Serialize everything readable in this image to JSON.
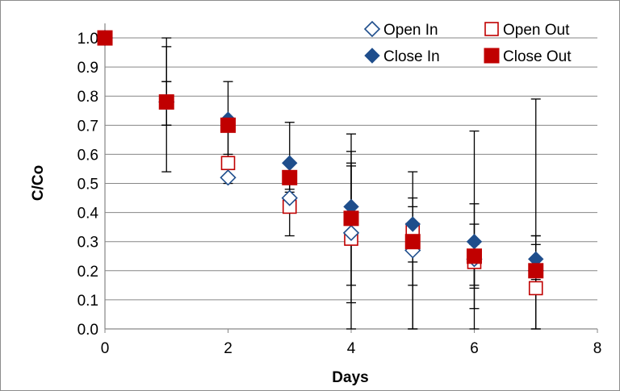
{
  "chart_data": {
    "type": "scatter",
    "title": "",
    "xlabel": "Days",
    "ylabel": "C/Co",
    "xlim": [
      0,
      8
    ],
    "ylim": [
      0,
      1.05
    ],
    "x_ticks": [
      "0",
      "2",
      "4",
      "6",
      "8"
    ],
    "y_ticks": [
      "0.0",
      "0.1",
      "0.2",
      "0.3",
      "0.4",
      "0.5",
      "0.6",
      "0.7",
      "0.8",
      "0.9",
      "1.0"
    ],
    "grid": "horizontal",
    "legend_position": "top-right",
    "series": [
      {
        "name": "Open In",
        "marker": "diamond-open",
        "color": "#1f4e8c",
        "x": [
          0,
          1,
          2,
          3,
          4,
          5,
          6,
          7
        ],
        "y": [
          1.0,
          0.78,
          0.52,
          0.45,
          0.33,
          0.27,
          0.24,
          0.2
        ],
        "err_low": [
          1.0,
          0.7,
          0.5,
          0.42,
          0.09,
          0.0,
          0.07,
          0.17
        ],
        "err_high": [
          1.0,
          0.85,
          0.55,
          0.47,
          0.57,
          0.42,
          0.36,
          0.29
        ]
      },
      {
        "name": "Open Out",
        "marker": "square-open",
        "color": "#c00000",
        "x": [
          0,
          1,
          2,
          3,
          4,
          5,
          6,
          7
        ],
        "y": [
          1.0,
          0.78,
          0.57,
          0.42,
          0.31,
          0.34,
          0.23,
          0.14
        ],
        "err_low": [
          1.0,
          0.54,
          0.55,
          0.32,
          0.0,
          0.15,
          0.14,
          0.0
        ],
        "err_high": [
          1.0,
          1.0,
          0.59,
          0.48,
          0.67,
          0.54,
          0.43,
          0.32
        ]
      },
      {
        "name": "Close In",
        "marker": "diamond-filled",
        "color": "#1f4e8c",
        "x": [
          0,
          1,
          2,
          3,
          4,
          5,
          6,
          7
        ],
        "y": [
          1.0,
          0.78,
          0.72,
          0.57,
          0.42,
          0.36,
          0.3,
          0.24
        ],
        "err_low": [
          1.0,
          0.7,
          0.6,
          0.43,
          0.15,
          0.23,
          0.15,
          0.16
        ],
        "err_high": [
          1.0,
          0.97,
          0.85,
          0.71,
          0.61,
          0.45,
          0.68,
          0.32
        ]
      },
      {
        "name": "Close Out",
        "marker": "square-filled",
        "color": "#c00000",
        "x": [
          0,
          1,
          2,
          3,
          4,
          5,
          6,
          7
        ],
        "y": [
          1.0,
          0.78,
          0.7,
          0.52,
          0.38,
          0.3,
          0.25,
          0.2
        ],
        "err_low": [
          1.0,
          0.7,
          0.56,
          0.46,
          0.3,
          0.0,
          0.0,
          0.0
        ],
        "err_high": [
          1.0,
          0.85,
          0.7,
          0.54,
          0.56,
          0.33,
          0.29,
          0.79
        ]
      }
    ]
  }
}
